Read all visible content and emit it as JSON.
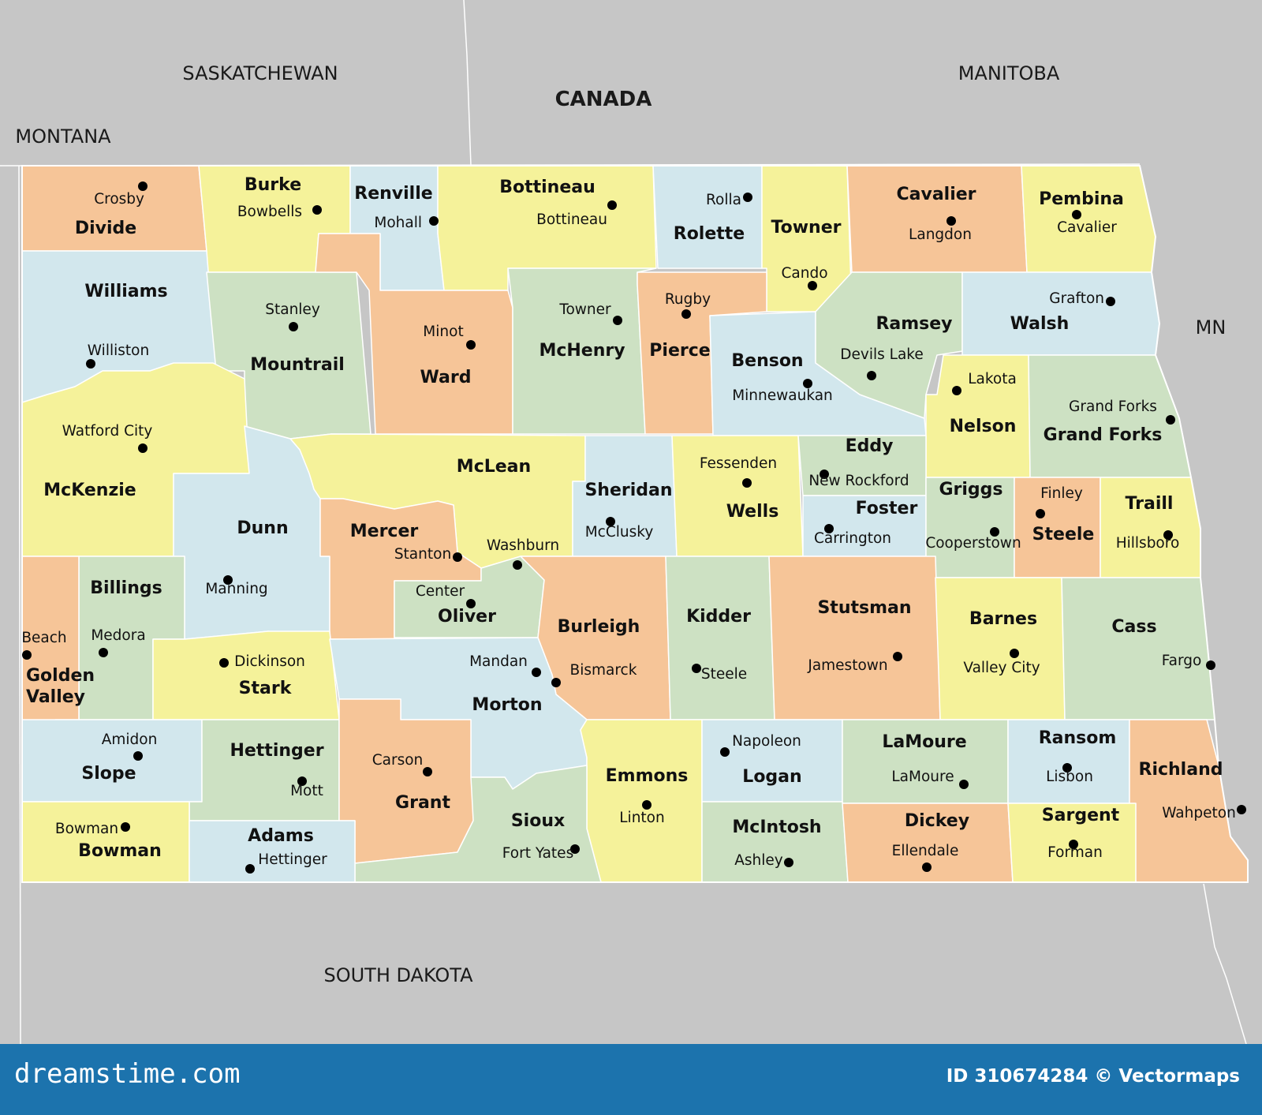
{
  "colors": {
    "orange": "#f6c598",
    "yellow": "#f5f29a",
    "blue": "#d2e7ed",
    "green": "#cde1c3",
    "background": "#c6c6c6",
    "border_line": "#ffffff",
    "footer": "#1c73ad"
  },
  "regions": {
    "saskatchewan": "SASKATCHEWAN",
    "canada": "CANADA",
    "manitoba": "MANITOBA",
    "montana": "MONTANA",
    "mn": "MN",
    "south_dakota": "SOUTH DAKOTA"
  },
  "counties": [
    {
      "name": "Divide",
      "color": "orange",
      "seat": "Crosby"
    },
    {
      "name": "Burke",
      "color": "yellow",
      "seat": "Bowbells"
    },
    {
      "name": "Renville",
      "color": "blue",
      "seat": "Mohall"
    },
    {
      "name": "Bottineau",
      "color": "yellow",
      "seat": "Bottineau"
    },
    {
      "name": "Rolette",
      "color": "blue",
      "seat": "Rolla"
    },
    {
      "name": "Towner",
      "color": "yellow",
      "seat": "Cando"
    },
    {
      "name": "Cavalier",
      "color": "orange",
      "seat": "Langdon"
    },
    {
      "name": "Pembina",
      "color": "yellow",
      "seat": "Cavalier"
    },
    {
      "name": "Williams",
      "color": "blue",
      "seat": "Williston"
    },
    {
      "name": "Mountrail",
      "color": "green",
      "seat": "Stanley"
    },
    {
      "name": "Ward",
      "color": "orange",
      "seat": "Minot"
    },
    {
      "name": "McHenry",
      "color": "green",
      "seat": "Towner"
    },
    {
      "name": "Pierce",
      "color": "orange",
      "seat": "Rugby"
    },
    {
      "name": "Benson",
      "color": "blue",
      "seat": "Minnewaukan"
    },
    {
      "name": "Ramsey",
      "color": "green",
      "seat": "Devils Lake"
    },
    {
      "name": "Walsh",
      "color": "blue",
      "seat": "Grafton"
    },
    {
      "name": "Nelson",
      "color": "yellow",
      "seat": "Lakota"
    },
    {
      "name": "Grand Forks",
      "color": "green",
      "seat": "Grand Forks"
    },
    {
      "name": "McKenzie",
      "color": "yellow",
      "seat": "Watford City"
    },
    {
      "name": "McLean",
      "color": "yellow",
      "seat": "Washburn"
    },
    {
      "name": "Sheridan",
      "color": "blue",
      "seat": "McClusky"
    },
    {
      "name": "Wells",
      "color": "yellow",
      "seat": "Fessenden"
    },
    {
      "name": "Eddy",
      "color": "green",
      "seat": "New Rockford"
    },
    {
      "name": "Foster",
      "color": "blue",
      "seat": "Carrington"
    },
    {
      "name": "Griggs",
      "color": "green",
      "seat": "Cooperstown"
    },
    {
      "name": "Steele",
      "color": "orange",
      "seat": "Finley"
    },
    {
      "name": "Traill",
      "color": "yellow",
      "seat": "Hillsboro"
    },
    {
      "name": "Dunn",
      "color": "blue",
      "seat": "Manning"
    },
    {
      "name": "Mercer",
      "color": "orange",
      "seat": "Stanton"
    },
    {
      "name": "Oliver",
      "color": "green",
      "seat": "Center"
    },
    {
      "name": "Burleigh",
      "color": "orange",
      "seat": "Bismarck"
    },
    {
      "name": "Kidder",
      "color": "green",
      "seat": "Steele"
    },
    {
      "name": "Stutsman",
      "color": "orange",
      "seat": "Jamestown"
    },
    {
      "name": "Barnes",
      "color": "yellow",
      "seat": "Valley City"
    },
    {
      "name": "Cass",
      "color": "green",
      "seat": "Fargo"
    },
    {
      "name": "Billings",
      "color": "green",
      "seat": "Medora"
    },
    {
      "name": "Golden Valley",
      "color": "orange",
      "seat": "Beach"
    },
    {
      "name": "Stark",
      "color": "yellow",
      "seat": "Dickinson"
    },
    {
      "name": "Morton",
      "color": "blue",
      "seat": "Mandan"
    },
    {
      "name": "Emmons",
      "color": "yellow",
      "seat": "Linton"
    },
    {
      "name": "Logan",
      "color": "blue",
      "seat": "Napoleon"
    },
    {
      "name": "LaMoure",
      "color": "green",
      "seat": "LaMoure"
    },
    {
      "name": "Ransom",
      "color": "blue",
      "seat": "Lisbon"
    },
    {
      "name": "Richland",
      "color": "orange",
      "seat": "Wahpeton"
    },
    {
      "name": "Slope",
      "color": "blue",
      "seat": "Amidon"
    },
    {
      "name": "Hettinger",
      "color": "green",
      "seat": "Mott"
    },
    {
      "name": "Grant",
      "color": "orange",
      "seat": "Carson"
    },
    {
      "name": "Sioux",
      "color": "green",
      "seat": "Fort Yates"
    },
    {
      "name": "McIntosh",
      "color": "green",
      "seat": "Ashley"
    },
    {
      "name": "Dickey",
      "color": "orange",
      "seat": "Ellendale"
    },
    {
      "name": "Sargent",
      "color": "yellow",
      "seat": "Forman"
    },
    {
      "name": "Bowman",
      "color": "yellow",
      "seat": "Bowman"
    },
    {
      "name": "Adams",
      "color": "blue",
      "seat": "Hettinger"
    }
  ],
  "footer": {
    "brand": "dreamstime.com",
    "credit": "ID 310674284 © Vectormaps"
  }
}
